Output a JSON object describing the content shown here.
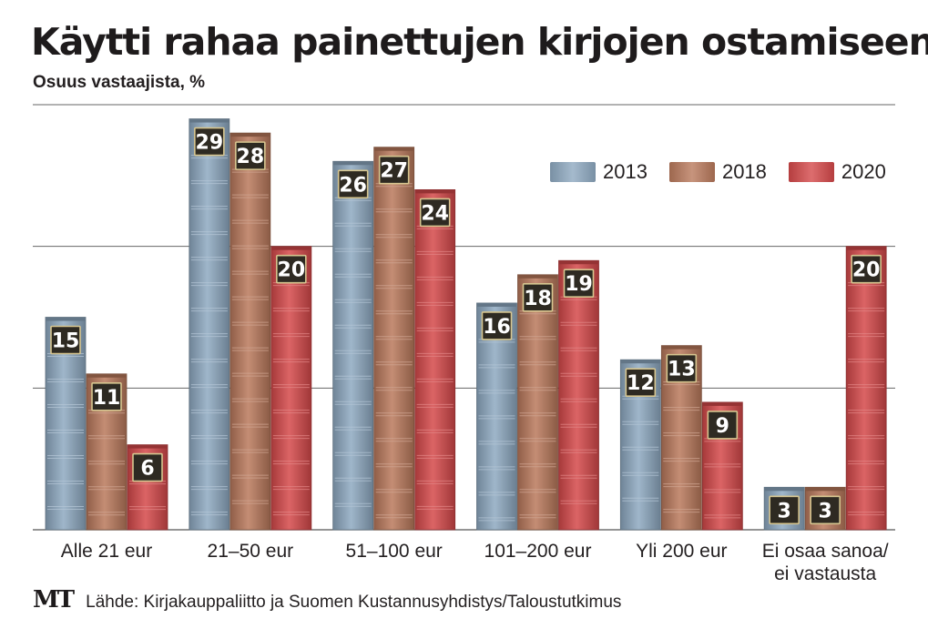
{
  "chart_data": {
    "type": "bar",
    "title": "Käytti rahaa painettujen kirjojen ostamiseen",
    "subtitle": "Osuus vastaajista, %",
    "categories": [
      "Alle 21 eur",
      "21–50 eur",
      "51–100 eur",
      "101–200 eur",
      "Yli 200 eur",
      "Ei osaa sanoa/\nei vastausta"
    ],
    "series": [
      {
        "name": "2013",
        "color": "#8ea9c1",
        "values": [
          15,
          29,
          26,
          16,
          12,
          3
        ]
      },
      {
        "name": "2018",
        "color": "#b9795c",
        "values": [
          11,
          28,
          27,
          18,
          13,
          3
        ]
      },
      {
        "name": "2020",
        "color": "#d5494a",
        "values": [
          6,
          20,
          24,
          19,
          9,
          20
        ]
      }
    ],
    "ylim": [
      0,
      30
    ],
    "grid": true,
    "legend": "top-right",
    "xlabel": "",
    "ylabel": ""
  },
  "footer": {
    "logo": "MT",
    "source": "Lähde: Kirjakauppaliitto ja Suomen Kustannusyhdistys/Taloustutkimus"
  }
}
